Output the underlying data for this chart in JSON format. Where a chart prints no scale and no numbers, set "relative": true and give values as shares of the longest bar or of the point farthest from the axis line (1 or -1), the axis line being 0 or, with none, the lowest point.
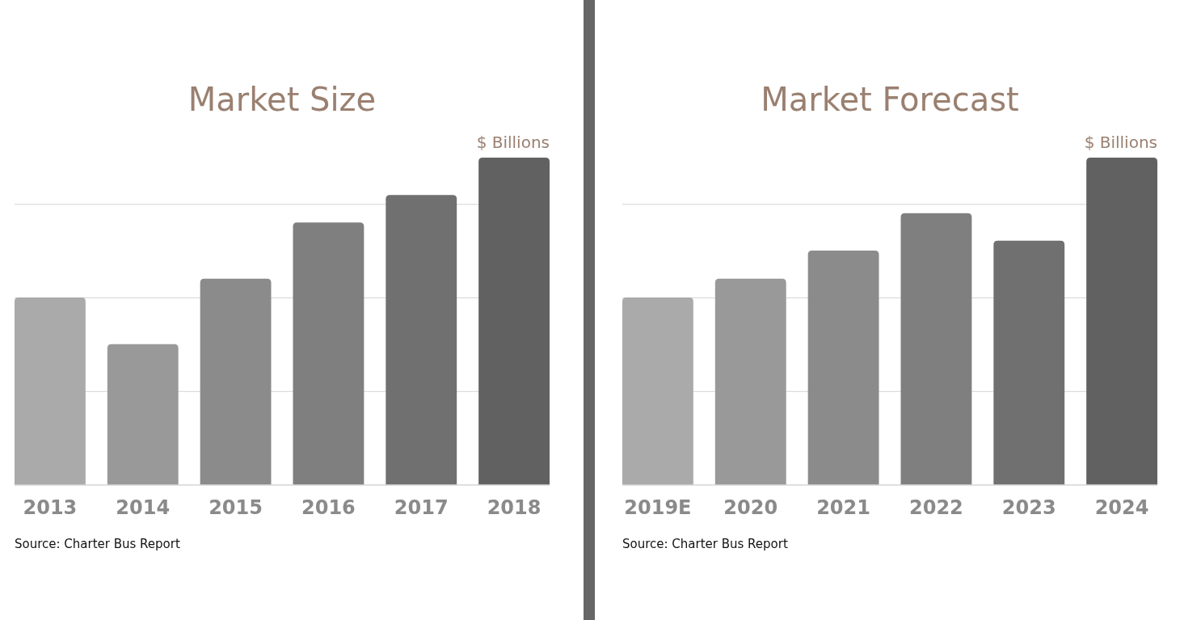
{
  "chart_data": [
    {
      "type": "bar",
      "title": "Market Size",
      "relative": true,
      "grid": "y",
      "categories": [
        "2013",
        "2014",
        "2015",
        "2016",
        "2017",
        "2018"
      ],
      "values": [
        0.573,
        0.43,
        0.63,
        0.802,
        0.886,
        1
      ],
      "colors": [
        "#aaaaaa",
        "#999999",
        "#8b8b8b",
        "#7f7f7f",
        "#707070",
        "#616161"
      ],
      "annotations": [
        "$ Billions",
        "Source: Charter Bus Report"
      ]
    },
    {
      "type": "bar",
      "title": "Market Forecast",
      "relative": true,
      "grid": "y",
      "categories": [
        "2019E",
        "2020",
        "2021",
        "2022",
        "2023",
        "2024"
      ],
      "values": [
        0.573,
        0.63,
        0.716,
        0.83,
        0.746,
        1
      ],
      "colors": [
        "#aaaaaa",
        "#999999",
        "#8b8b8b",
        "#7f7f7f",
        "#707070",
        "#616161"
      ],
      "annotations": [
        "$ Billions",
        "Source: Charter Bus Report"
      ]
    }
  ]
}
